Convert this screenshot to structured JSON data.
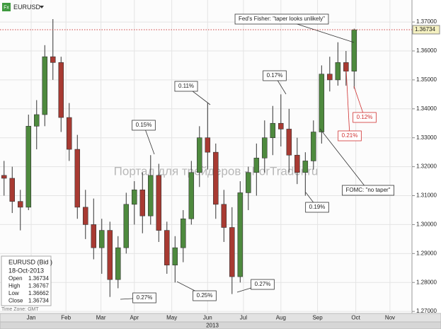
{
  "chart_data": {
    "type": "candlestick",
    "symbol": "EURUSD",
    "symbol_icon": "Fx",
    "up_color": "#4e8a3e",
    "down_color": "#a83a32",
    "series": {
      "open": [
        1.317,
        1.316,
        1.308,
        1.306,
        1.334,
        1.338,
        1.358,
        1.356,
        1.337,
        1.326,
        1.306,
        1.3,
        1.292,
        1.298,
        1.281,
        1.292,
        1.307,
        1.312,
        1.303,
        1.317,
        1.298,
        1.286,
        1.292,
        1.302,
        1.318,
        1.33,
        1.325,
        1.307,
        1.299,
        1.282,
        1.311,
        1.318,
        1.323,
        1.33,
        1.335,
        1.333,
        1.324,
        1.318,
        1.322,
        1.332,
        1.352,
        1.35,
        1.356,
        1.353
      ],
      "high": [
        1.322,
        1.32,
        1.312,
        1.338,
        1.343,
        1.362,
        1.371,
        1.358,
        1.342,
        1.331,
        1.312,
        1.309,
        1.302,
        1.301,
        1.296,
        1.311,
        1.315,
        1.318,
        1.324,
        1.321,
        1.301,
        1.296,
        1.305,
        1.322,
        1.334,
        1.342,
        1.328,
        1.312,
        1.306,
        1.315,
        1.32,
        1.328,
        1.336,
        1.341,
        1.345,
        1.34,
        1.33,
        1.325,
        1.336,
        1.355,
        1.358,
        1.363,
        1.36,
        1.3677
      ],
      "low": [
        1.31,
        1.304,
        1.298,
        1.305,
        1.326,
        1.334,
        1.35,
        1.332,
        1.322,
        1.302,
        1.295,
        1.288,
        1.283,
        1.275,
        1.278,
        1.29,
        1.3,
        1.297,
        1.3,
        1.294,
        1.283,
        1.28,
        1.287,
        1.3,
        1.313,
        1.319,
        1.302,
        1.294,
        1.276,
        1.28,
        1.305,
        1.31,
        1.318,
        1.324,
        1.327,
        1.318,
        1.314,
        1.31,
        1.319,
        1.328,
        1.346,
        1.348,
        1.348,
        1.347
      ],
      "close": [
        1.316,
        1.308,
        1.306,
        1.334,
        1.338,
        1.358,
        1.356,
        1.337,
        1.326,
        1.306,
        1.3,
        1.292,
        1.298,
        1.281,
        1.292,
        1.307,
        1.312,
        1.303,
        1.317,
        1.298,
        1.286,
        1.292,
        1.302,
        1.318,
        1.33,
        1.325,
        1.307,
        1.299,
        1.282,
        1.311,
        1.318,
        1.323,
        1.33,
        1.335,
        1.333,
        1.324,
        1.318,
        1.322,
        1.332,
        1.352,
        1.35,
        1.356,
        1.353,
        1.3673
      ]
    },
    "xlim": [
      -0.5,
      50.1
    ],
    "xticks": [
      {
        "value": 3.33,
        "label": "Jan"
      },
      {
        "value": 7.6,
        "label": "Feb"
      },
      {
        "value": 11.9,
        "label": "Mar"
      },
      {
        "value": 16.0,
        "label": "Apr"
      },
      {
        "value": 20.6,
        "label": "May"
      },
      {
        "value": 25.0,
        "label": "Jun"
      },
      {
        "value": 29.4,
        "label": "Jul"
      },
      {
        "value": 34.0,
        "label": "Aug"
      },
      {
        "value": 38.5,
        "label": "Sep"
      },
      {
        "value": 43.2,
        "label": "Oct"
      },
      {
        "value": 47.4,
        "label": "Nov"
      }
    ],
    "ylim": [
      1.2693,
      1.3776
    ],
    "yticks": [
      {
        "value": 1.27,
        "label": "1.27000"
      },
      {
        "value": 1.28,
        "label": "1.28000"
      },
      {
        "value": 1.29,
        "label": "1.29000"
      },
      {
        "value": 1.3,
        "label": "1.30000"
      },
      {
        "value": 1.31,
        "label": "1.31000"
      },
      {
        "value": 1.32,
        "label": "1.32000"
      },
      {
        "value": 1.33,
        "label": "1.33000"
      },
      {
        "value": 1.34,
        "label": "1.34000"
      },
      {
        "value": 1.35,
        "label": "1.35000"
      },
      {
        "value": 1.36,
        "label": "1.36000"
      },
      {
        "value": 1.37,
        "label": "1.37000"
      }
    ],
    "grid": true,
    "last_price": 1.36734,
    "annotations": [
      {
        "text": "Fed's Fisher: \"taper looks unlikely\""
      },
      {
        "text": "0.11%"
      },
      {
        "text": "0.17%"
      },
      {
        "text": "0.15%"
      },
      {
        "text": "0.12%"
      },
      {
        "text": "0.21%"
      },
      {
        "text": "FOMC: \"no taper\""
      },
      {
        "text": "0.19%"
      },
      {
        "text": "0.27%"
      },
      {
        "text": "0.25%"
      },
      {
        "text": "0.27%"
      }
    ],
    "info": {
      "title": "EURUSD (Bid )",
      "date": "18-Oct-2013",
      "rows": [
        [
          "Open",
          1.36734
        ],
        [
          "High",
          1.36767
        ],
        [
          "Low",
          1.36662
        ],
        [
          "Close",
          1.36734
        ]
      ]
    },
    "time_zone": "Time Zone: GMT",
    "year": "2013",
    "watermark": "Портал для трейдеров - ForTrader.ru"
  }
}
